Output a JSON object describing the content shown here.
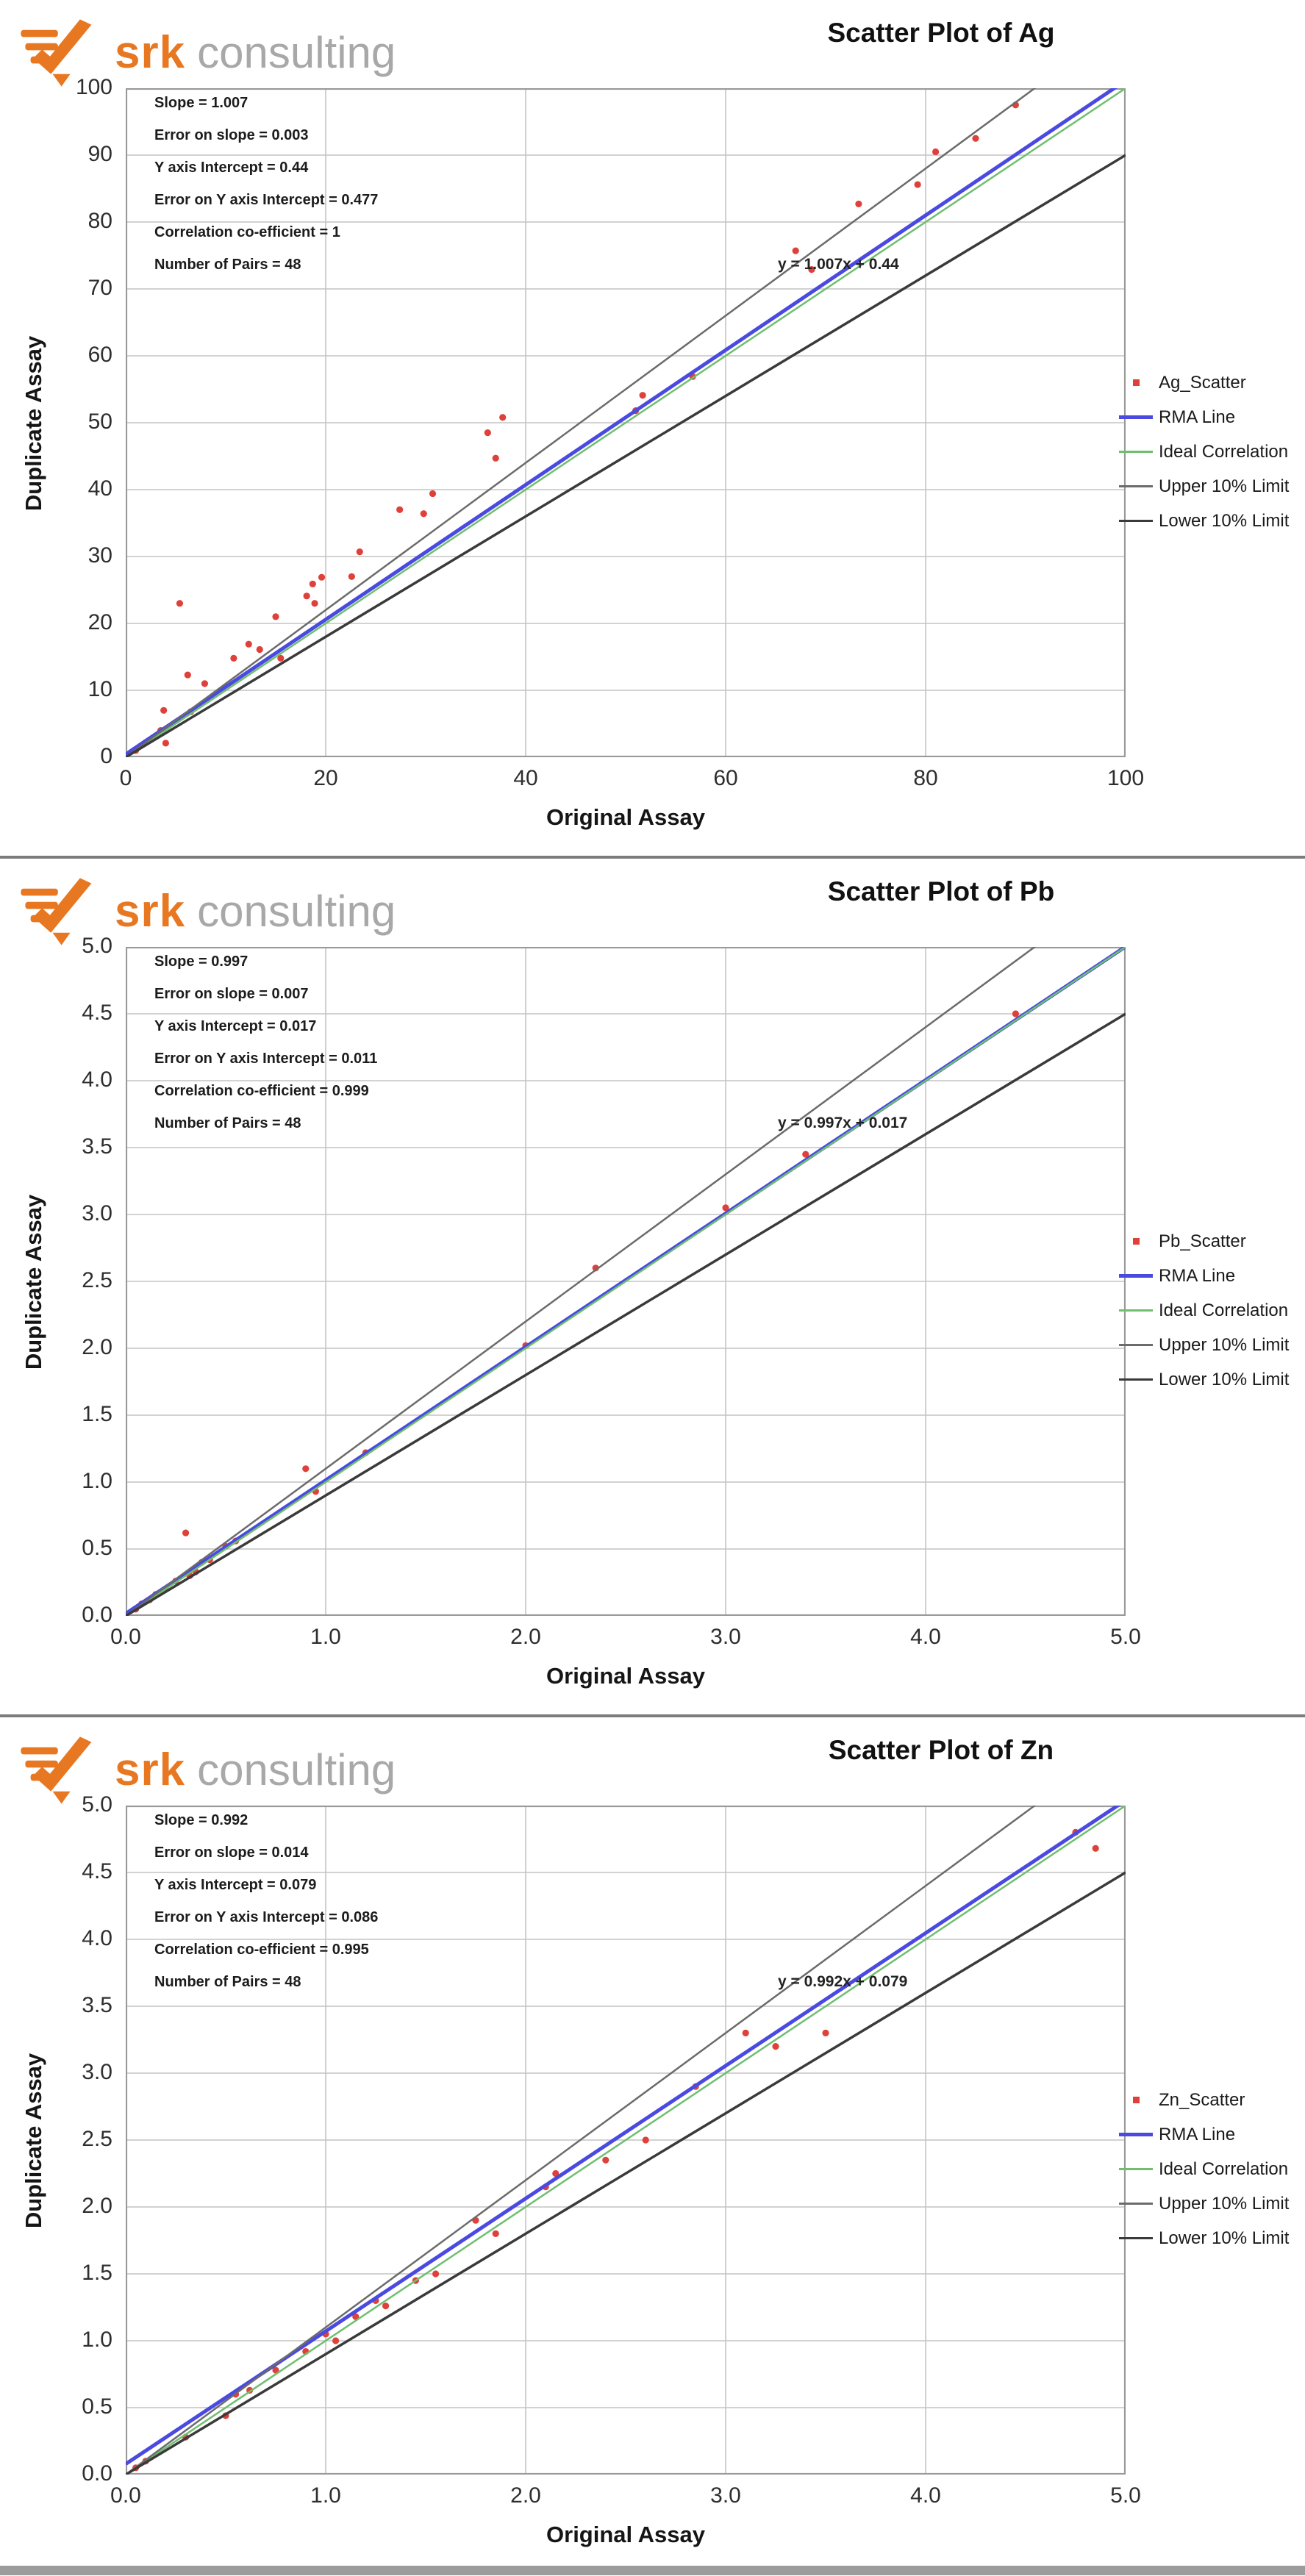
{
  "brand": {
    "name_bold": "srk",
    "name_light": "consulting"
  },
  "colors": {
    "accent_orange": "#e87722",
    "logo_gray": "#a8a8a8",
    "scatter_red": "#e0403a",
    "rma_blue": "#4a4ae0",
    "ideal_green": "#6fbf6f",
    "upper_gray": "#6b6b6b",
    "lower_dark": "#3a3a3a",
    "grid_gray": "#c4c4c4",
    "plot_border": "#999999"
  },
  "charts": [
    {
      "title": "Scatter Plot of Ag",
      "xlabel": "Original Assay",
      "ylabel": "Duplicate Assay",
      "equation": "y = 1.007x + 0.44",
      "stats": [
        "Slope = 1.007",
        "Error on slope = 0.003",
        "Y axis Intercept = 0.44",
        "Error on Y axis Intercept = 0.477",
        "Correlation co-efficient = 1",
        "Number of Pairs = 48"
      ],
      "legend": [
        "Ag_Scatter",
        "RMA Line",
        "Ideal Correlation",
        "Upper 10% Limit",
        "Lower 10% Limit"
      ],
      "chart_data": {
        "type": "scatter",
        "xlim": [
          0,
          100
        ],
        "ylim": [
          0,
          100
        ],
        "xticks": [
          0,
          20,
          40,
          60,
          80,
          100
        ],
        "xtick_labels": [
          "0",
          "20",
          "40",
          "60",
          "80",
          "100"
        ],
        "yticks": [
          0,
          10,
          20,
          30,
          40,
          50,
          60,
          70,
          80,
          90,
          100
        ],
        "ytick_labels": [
          "0",
          "10",
          "20",
          "30",
          "40",
          "50",
          "60",
          "70",
          "80",
          "90",
          "100"
        ],
        "grid": true,
        "legend_position": "right",
        "series": [
          {
            "name": "Ag_Scatter",
            "type": "points",
            "color": "#e0403a",
            "points": [
              [
                1,
                1
              ],
              [
                2,
                2.2
              ],
              [
                3.5,
                4
              ],
              [
                3.8,
                7
              ],
              [
                4,
                2.1
              ],
              [
                5.4,
                23
              ],
              [
                6.2,
                12.3
              ],
              [
                6.5,
                6.8
              ],
              [
                7.9,
                11
              ],
              [
                10.8,
                14.8
              ],
              [
                12.3,
                16.9
              ],
              [
                13.4,
                16.1
              ],
              [
                15,
                21
              ],
              [
                15.5,
                14.8
              ],
              [
                18.1,
                24.1
              ],
              [
                18.7,
                25.9
              ],
              [
                18.9,
                23
              ],
              [
                19.6,
                26.9
              ],
              [
                22.6,
                27
              ],
              [
                23.4,
                30.7
              ],
              [
                27.4,
                37
              ],
              [
                29.8,
                36.4
              ],
              [
                30.7,
                39.4
              ],
              [
                36.2,
                48.5
              ],
              [
                37,
                44.7
              ],
              [
                37.7,
                50.8
              ],
              [
                51,
                51.8
              ],
              [
                51.7,
                54.1
              ],
              [
                56.7,
                56.9
              ],
              [
                67,
                75.7
              ],
              [
                68.6,
                72.9
              ],
              [
                73.3,
                82.7
              ],
              [
                79.2,
                85.6
              ],
              [
                81,
                90.5
              ],
              [
                85,
                92.5
              ],
              [
                89,
                97.5
              ]
            ]
          },
          {
            "name": "RMA Line",
            "type": "line",
            "color": "#4a4ae0",
            "slope": 1.007,
            "intercept": 0.44,
            "width": 5
          },
          {
            "name": "Ideal Correlation",
            "type": "line",
            "color": "#6fbf6f",
            "slope": 1,
            "intercept": 0,
            "width": 2.5
          },
          {
            "name": "Upper 10% Limit",
            "type": "line",
            "color": "#6b6b6b",
            "slope": 1.1,
            "intercept": 0,
            "width": 2.5
          },
          {
            "name": "Lower 10% Limit",
            "type": "line",
            "color": "#3a3a3a",
            "slope": 0.9,
            "intercept": 0,
            "width": 3.5
          }
        ]
      }
    },
    {
      "title": "Scatter Plot of Pb",
      "xlabel": "Original Assay",
      "ylabel": "Duplicate Assay",
      "equation": "y = 0.997x + 0.017",
      "stats": [
        "Slope = 0.997",
        "Error on slope = 0.007",
        "Y axis Intercept = 0.017",
        "Error on Y axis Intercept = 0.011",
        "Correlation co-efficient = 0.999",
        "Number of Pairs = 48"
      ],
      "legend": [
        "Pb_Scatter",
        "RMA Line",
        "Ideal Correlation",
        "Upper 10% Limit",
        "Lower 10% Limit"
      ],
      "chart_data": {
        "type": "scatter",
        "xlim": [
          0,
          5
        ],
        "ylim": [
          0,
          5
        ],
        "xticks": [
          0,
          1,
          2,
          3,
          4,
          5
        ],
        "xtick_labels": [
          "0.0",
          "1.0",
          "2.0",
          "3.0",
          "4.0",
          "5.0"
        ],
        "yticks": [
          0,
          0.5,
          1,
          1.5,
          2,
          2.5,
          3,
          3.5,
          4,
          4.5,
          5
        ],
        "ytick_labels": [
          "0.0",
          "0.5",
          "1.0",
          "1.5",
          "2.0",
          "2.5",
          "3.0",
          "3.5",
          "4.0",
          "4.5",
          "5.0"
        ],
        "grid": true,
        "legend_position": "right",
        "series": [
          {
            "name": "Pb_Scatter",
            "type": "points",
            "color": "#e0403a",
            "points": [
              [
                0.05,
                0.05
              ],
              [
                0.08,
                0.09
              ],
              [
                0.12,
                0.12
              ],
              [
                0.15,
                0.16
              ],
              [
                0.2,
                0.2
              ],
              [
                0.25,
                0.26
              ],
              [
                0.3,
                0.62
              ],
              [
                0.32,
                0.3
              ],
              [
                0.35,
                0.33
              ],
              [
                0.38,
                0.4
              ],
              [
                0.42,
                0.42
              ],
              [
                0.5,
                0.52
              ],
              [
                0.55,
                0.56
              ],
              [
                0.9,
                1.1
              ],
              [
                0.95,
                0.93
              ],
              [
                1.2,
                1.22
              ],
              [
                2.0,
                2.02
              ],
              [
                2.35,
                2.6
              ],
              [
                3.0,
                3.05
              ],
              [
                3.4,
                3.45
              ],
              [
                4.45,
                4.5
              ]
            ]
          },
          {
            "name": "RMA Line",
            "type": "line",
            "color": "#4a4ae0",
            "slope": 0.997,
            "intercept": 0.017,
            "width": 5
          },
          {
            "name": "Ideal Correlation",
            "type": "line",
            "color": "#6fbf6f",
            "slope": 1,
            "intercept": 0,
            "width": 2.5
          },
          {
            "name": "Upper 10% Limit",
            "type": "line",
            "color": "#6b6b6b",
            "slope": 1.1,
            "intercept": 0,
            "width": 2.5
          },
          {
            "name": "Lower 10% Limit",
            "type": "line",
            "color": "#3a3a3a",
            "slope": 0.9,
            "intercept": 0,
            "width": 3.5
          }
        ]
      }
    },
    {
      "title": "Scatter Plot of Zn",
      "xlabel": "Original Assay",
      "ylabel": "Duplicate Assay",
      "equation": "y = 0.992x + 0.079",
      "stats": [
        "Slope = 0.992",
        "Error on slope = 0.014",
        "Y axis Intercept = 0.079",
        "Error on Y axis Intercept = 0.086",
        "Correlation co-efficient = 0.995",
        "Number of Pairs = 48"
      ],
      "legend": [
        "Zn_Scatter",
        "RMA Line",
        "Ideal Correlation",
        "Upper 10% Limit",
        "Lower 10% Limit"
      ],
      "chart_data": {
        "type": "scatter",
        "xlim": [
          0,
          5
        ],
        "ylim": [
          0,
          5
        ],
        "xticks": [
          0,
          1,
          2,
          3,
          4,
          5
        ],
        "xtick_labels": [
          "0.0",
          "1.0",
          "2.0",
          "3.0",
          "4.0",
          "5.0"
        ],
        "yticks": [
          0,
          0.5,
          1,
          1.5,
          2,
          2.5,
          3,
          3.5,
          4,
          4.5,
          5
        ],
        "ytick_labels": [
          "0.0",
          "0.5",
          "1.0",
          "1.5",
          "2.0",
          "2.5",
          "3.0",
          "3.5",
          "4.0",
          "4.5",
          "5.0"
        ],
        "grid": true,
        "legend_position": "right",
        "series": [
          {
            "name": "Zn_Scatter",
            "type": "points",
            "color": "#e0403a",
            "points": [
              [
                0.05,
                0.05
              ],
              [
                0.1,
                0.1
              ],
              [
                0.3,
                0.28
              ],
              [
                0.5,
                0.44
              ],
              [
                0.55,
                0.6
              ],
              [
                0.62,
                0.63
              ],
              [
                0.75,
                0.78
              ],
              [
                0.9,
                0.92
              ],
              [
                1.0,
                1.05
              ],
              [
                1.05,
                1.0
              ],
              [
                1.15,
                1.18
              ],
              [
                1.25,
                1.3
              ],
              [
                1.3,
                1.26
              ],
              [
                1.45,
                1.45
              ],
              [
                1.55,
                1.5
              ],
              [
                1.75,
                1.9
              ],
              [
                1.85,
                1.8
              ],
              [
                2.1,
                2.15
              ],
              [
                2.15,
                2.25
              ],
              [
                2.4,
                2.35
              ],
              [
                2.6,
                2.5
              ],
              [
                2.85,
                2.9
              ],
              [
                3.1,
                3.3
              ],
              [
                3.25,
                3.2
              ],
              [
                3.5,
                3.3
              ],
              [
                4.75,
                4.8
              ],
              [
                4.85,
                4.68
              ]
            ]
          },
          {
            "name": "RMA Line",
            "type": "line",
            "color": "#4a4ae0",
            "slope": 0.992,
            "intercept": 0.079,
            "width": 5
          },
          {
            "name": "Ideal Correlation",
            "type": "line",
            "color": "#6fbf6f",
            "slope": 1,
            "intercept": 0,
            "width": 2.5
          },
          {
            "name": "Upper 10% Limit",
            "type": "line",
            "color": "#6b6b6b",
            "slope": 1.1,
            "intercept": 0,
            "width": 2.5
          },
          {
            "name": "Lower 10% Limit",
            "type": "line",
            "color": "#3a3a3a",
            "slope": 0.9,
            "intercept": 0,
            "width": 3.5
          }
        ]
      }
    }
  ]
}
